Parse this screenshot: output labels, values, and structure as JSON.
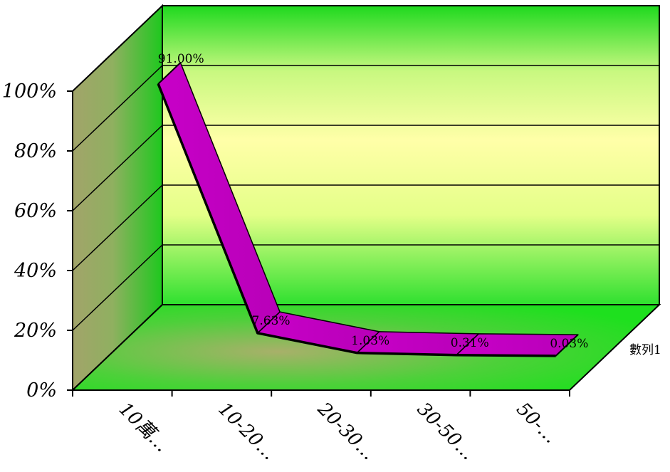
{
  "chart_data": {
    "type": "line",
    "variant": "3d-ribbon",
    "title": "",
    "xlabel": "",
    "ylabel": "",
    "categories": [
      "10萬…",
      "10-20…",
      "20-30…",
      "30-50…",
      "50-…"
    ],
    "series": [
      {
        "name": "數列1",
        "values": [
          91.0,
          7.63,
          1.03,
          0.31,
          0.03
        ],
        "labels": [
          "91.00%",
          "7.63%",
          "1.03%",
          "0.31%",
          "0.03%"
        ]
      }
    ],
    "y_ticks": [
      "0%",
      "20%",
      "40%",
      "60%",
      "80%",
      "100%"
    ],
    "ylim": [
      0,
      100
    ],
    "grid": true,
    "legend": "none",
    "colors": {
      "ribbon": "#c000c0",
      "floor": "#22cc22",
      "back_wall_top": "#22dd22",
      "back_wall_mid": "#ffff99",
      "side_wall": "#a7a86a",
      "outline": "#000000"
    }
  }
}
